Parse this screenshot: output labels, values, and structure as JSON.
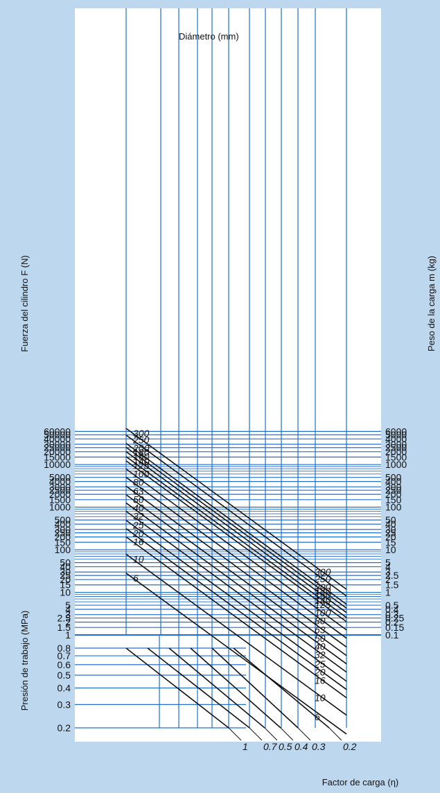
{
  "chart_data": {
    "type": "nomogram",
    "title": "",
    "left_axis_label": "Fuerza del cilindro F (N)",
    "right_axis_label": "Peso de la carga m (kg)",
    "pressure_axis_label": "Presión de trabajo (MPa)",
    "load_factor_label": "Factor de carga (η)",
    "diameter_label": "Diámetro (mm)",
    "force_ticks": [
      "60000",
      "50000",
      "40000",
      "30000",
      "25000",
      "20000",
      "15000",
      "10000",
      "5000",
      "4000",
      "3000",
      "2500",
      "2000",
      "1500",
      "1000",
      "500",
      "400",
      "300",
      "250",
      "200",
      "150",
      "100",
      "50",
      "40",
      "30",
      "25",
      "20",
      "15",
      "10",
      "5",
      "4",
      "3",
      "2.5",
      "2",
      "1.5",
      "1"
    ],
    "force_values": [
      60000,
      50000,
      40000,
      30000,
      25000,
      20000,
      15000,
      10000,
      5000,
      4000,
      3000,
      2500,
      2000,
      1500,
      1000,
      500,
      400,
      300,
      250,
      200,
      150,
      100,
      50,
      40,
      30,
      25,
      20,
      15,
      10,
      5,
      4,
      3,
      2.5,
      2,
      1.5,
      1
    ],
    "mass_ticks": [
      "6000",
      "5000",
      "4000",
      "3000",
      "2500",
      "2000",
      "1500",
      "1000",
      "500",
      "400",
      "300",
      "250",
      "200",
      "150",
      "100",
      "50",
      "40",
      "30",
      "25",
      "20",
      "15",
      "10",
      "5",
      "4",
      "3",
      "2.5",
      "2",
      "1.5",
      "1",
      "0.5",
      "0.4",
      "0.3",
      "0.25",
      "0.2",
      "0.15",
      "0.1"
    ],
    "pressure_ticks": [
      "0.8",
      "0.7",
      "0.6",
      "0.5",
      "0.4",
      "0.3",
      "0.2"
    ],
    "pressure_values": [
      0.8,
      0.7,
      0.6,
      0.5,
      0.4,
      0.3,
      0.2
    ],
    "diameters": [
      "300",
      "250",
      "200",
      "180",
      "160",
      "140",
      "125",
      "100",
      "80",
      "63",
      "50",
      "40",
      "32",
      "25",
      "20",
      "16",
      "10",
      "6"
    ],
    "diameter_values": [
      300,
      250,
      200,
      180,
      160,
      140,
      125,
      100,
      80,
      63,
      50,
      40,
      32,
      25,
      20,
      16,
      10,
      6
    ],
    "load_factors": [
      "1",
      "0.7",
      "0.5",
      "0.4",
      "0.3",
      "0.2"
    ],
    "load_factor_values": [
      1,
      0.7,
      0.5,
      0.4,
      0.3,
      0.2
    ]
  },
  "colors": {
    "background": "#bdd7ee",
    "panel": "#ffffff",
    "grid": "#1f6fd1",
    "diagonal": "#111111"
  }
}
